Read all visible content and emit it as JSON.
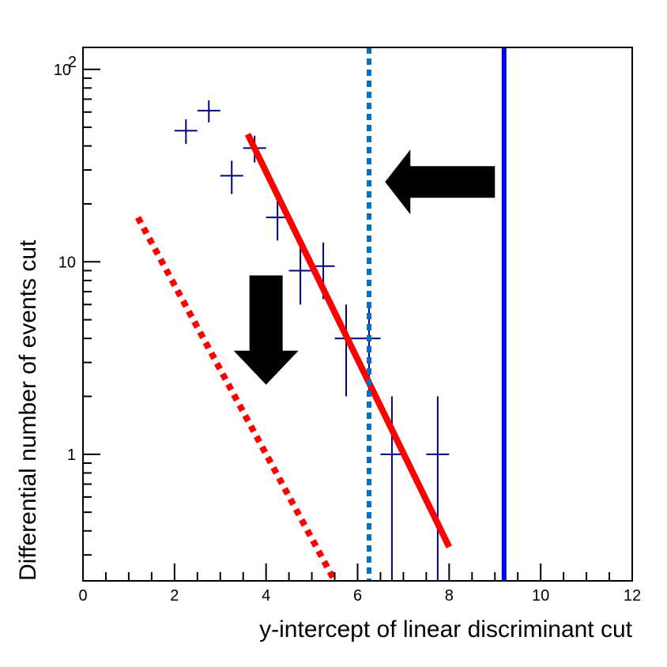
{
  "chart_data": {
    "type": "scatter",
    "xlabel": "y-intercept of linear discriminant cut",
    "ylabel": "Differential number of events cut",
    "xlim": [
      0,
      12
    ],
    "ylim": [
      0.22,
      130
    ],
    "yscale": "log",
    "x_ticks": [
      "0",
      "2",
      "4",
      "6",
      "8",
      "10",
      "12"
    ],
    "y_ticks": [
      {
        "value": 1,
        "label": "1"
      },
      {
        "value": 10,
        "label": "10"
      },
      {
        "value": 100,
        "label": "10",
        "exponent": "2"
      }
    ],
    "grid": false,
    "series": [
      {
        "kind": "error_points",
        "color": "#000080",
        "points": [
          {
            "x": 2.25,
            "y": 48,
            "xerr": 0.25,
            "ylo": 41,
            "yhi": 55
          },
          {
            "x": 2.75,
            "y": 61,
            "xerr": 0.25,
            "ylo": 53,
            "yhi": 69
          },
          {
            "x": 3.25,
            "y": 28,
            "xerr": 0.25,
            "ylo": 22.5,
            "yhi": 33.5
          },
          {
            "x": 3.75,
            "y": 39,
            "xerr": 0.25,
            "ylo": 32.8,
            "yhi": 45.2
          },
          {
            "x": 4.25,
            "y": 17,
            "xerr": 0.25,
            "ylo": 12.9,
            "yhi": 21.1
          },
          {
            "x": 4.75,
            "y": 9,
            "xerr": 0.25,
            "ylo": 6.0,
            "yhi": 12.0
          },
          {
            "x": 5.25,
            "y": 9.5,
            "xerr": 0.25,
            "ylo": 6.4,
            "yhi": 12.6
          },
          {
            "x": 5.75,
            "y": 4,
            "xerr": 0.25,
            "ylo": 2.0,
            "yhi": 6.0
          },
          {
            "x": 6.25,
            "y": 4,
            "xerr": 0.25,
            "ylo": 2.0,
            "yhi": 6.0
          },
          {
            "x": 6.75,
            "y": 1,
            "xerr": 0.25,
            "ylo": 0.22,
            "yhi": 2.0
          },
          {
            "x": 7.75,
            "y": 1,
            "xerr": 0.25,
            "ylo": 0.22,
            "yhi": 2.0
          }
        ]
      },
      {
        "kind": "line",
        "style": "solid",
        "color": "#ff0000",
        "x": [
          3.6,
          8.0
        ],
        "y": [
          46,
          0.33
        ]
      },
      {
        "kind": "line",
        "style": "dotted",
        "color": "#ff0000",
        "x": [
          1.2,
          5.5
        ],
        "y": [
          17,
          0.22
        ]
      },
      {
        "kind": "vline",
        "style": "dotted",
        "color": "#0070c0",
        "x": 6.25
      },
      {
        "kind": "vline",
        "style": "solid",
        "color": "#0000ff",
        "x": 9.2
      }
    ],
    "annotations": [
      {
        "kind": "arrow",
        "direction": "left",
        "color": "#000000",
        "x_tail": 9.0,
        "x_head": 6.6,
        "y": 26
      },
      {
        "kind": "arrow",
        "direction": "down",
        "color": "#000000",
        "x": 4.0,
        "y_tail": 8.5,
        "y_head": 2.3
      }
    ]
  }
}
